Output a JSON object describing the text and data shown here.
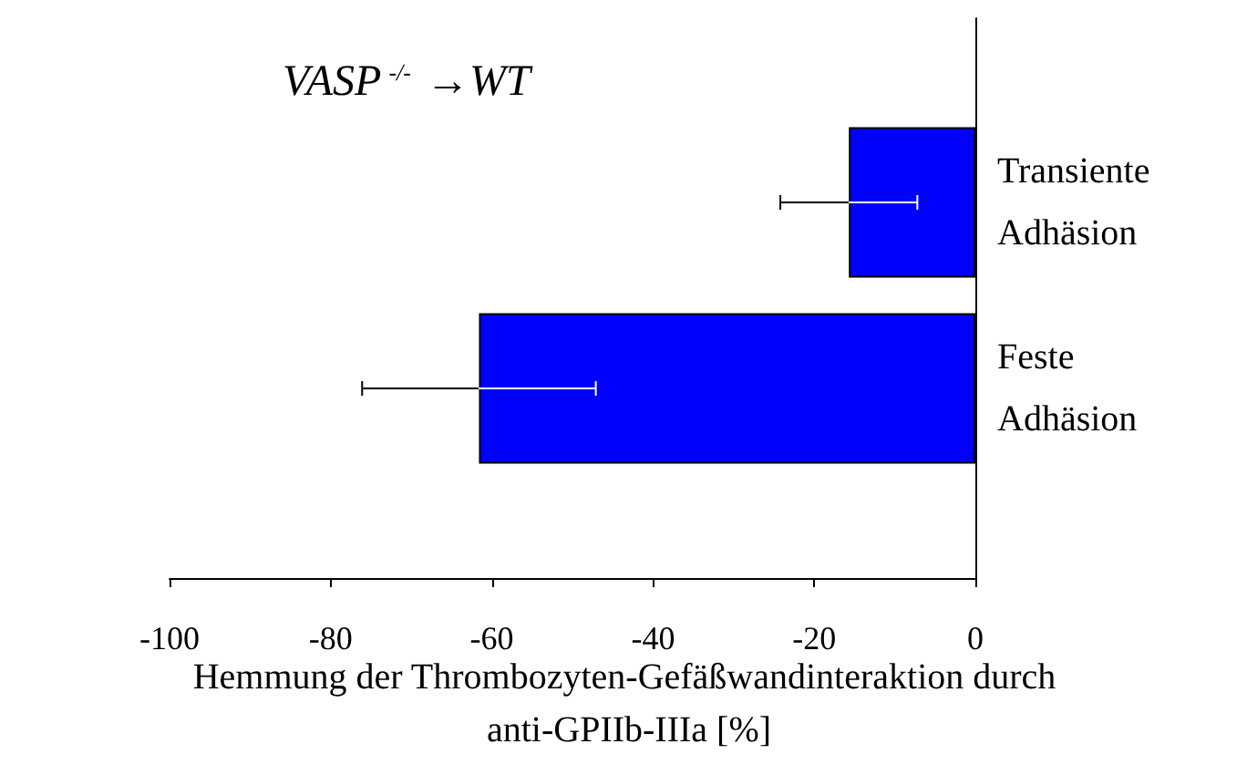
{
  "chart_data": {
    "type": "bar",
    "orientation": "horizontal",
    "title": "VASP$^{-/-}$ →WT",
    "xlabel": "Hemmung der Thrombozyten-Gefäßwandinteraktion durch anti-GPIIb-IIIa [%]",
    "categories": [
      "Transiente Adhäsion",
      "Feste Adhäsion"
    ],
    "values": [
      -15.7,
      -61.6
    ],
    "errors": [
      8.5,
      14.5
    ],
    "color": "#0000ff",
    "xlim": [
      -100,
      0
    ],
    "xticks": [
      -100,
      -80,
      -60,
      -40,
      -20,
      0
    ],
    "grid": false
  }
}
